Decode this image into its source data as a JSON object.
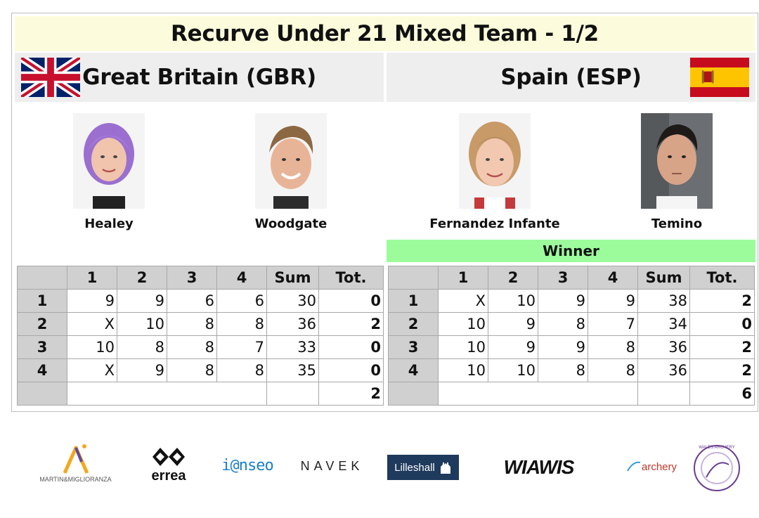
{
  "title": "Recurve Under 21 Mixed Team - 1/2",
  "teams": {
    "left": {
      "name": "Great Britain (GBR)",
      "flag_icon": "uk-flag-icon",
      "athletes": [
        "Healey",
        "Woodgate"
      ]
    },
    "right": {
      "name": "Spain (ESP)",
      "flag_icon": "spain-flag-icon",
      "athletes": [
        "Fernandez Infante",
        "Temino"
      ]
    }
  },
  "winner_label": "Winner",
  "headers": [
    "",
    "1",
    "2",
    "3",
    "4",
    "Sum",
    "Tot."
  ],
  "scores": {
    "left": {
      "rows": [
        {
          "end": "1",
          "arrows": [
            "9",
            "9",
            "6",
            "6"
          ],
          "sum": "30",
          "tot": "0"
        },
        {
          "end": "2",
          "arrows": [
            "X",
            "10",
            "8",
            "8"
          ],
          "sum": "36",
          "tot": "2"
        },
        {
          "end": "3",
          "arrows": [
            "10",
            "8",
            "8",
            "7"
          ],
          "sum": "33",
          "tot": "0"
        },
        {
          "end": "4",
          "arrows": [
            "X",
            "9",
            "8",
            "8"
          ],
          "sum": "35",
          "tot": "0"
        }
      ],
      "total": "2"
    },
    "right": {
      "rows": [
        {
          "end": "1",
          "arrows": [
            "X",
            "10",
            "9",
            "9"
          ],
          "sum": "38",
          "tot": "2"
        },
        {
          "end": "2",
          "arrows": [
            "10",
            "9",
            "8",
            "7"
          ],
          "sum": "34",
          "tot": "0"
        },
        {
          "end": "3",
          "arrows": [
            "10",
            "9",
            "9",
            "8"
          ],
          "sum": "36",
          "tot": "2"
        },
        {
          "end": "4",
          "arrows": [
            "10",
            "10",
            "8",
            "8"
          ],
          "sum": "36",
          "tot": "2"
        }
      ],
      "total": "6"
    }
  },
  "sponsors": [
    {
      "icon": "martin-miglioranza-logo",
      "text": "MARTIN&MIGLIORANZA"
    },
    {
      "icon": "errea-logo",
      "text": "errea"
    },
    {
      "icon": "ianseo-logo",
      "text": "i@nseo"
    },
    {
      "icon": "navek-logo",
      "text": "NAVEK"
    },
    {
      "icon": "lilleshall-logo",
      "text": "Lilleshall"
    },
    {
      "icon": "win-win-logo",
      "text": "WIAWIS"
    },
    {
      "icon": "archery-gb-logo",
      "text": "archery"
    },
    {
      "icon": "wales-archery-logo",
      "text": "WALES ARCHERY"
    }
  ]
}
